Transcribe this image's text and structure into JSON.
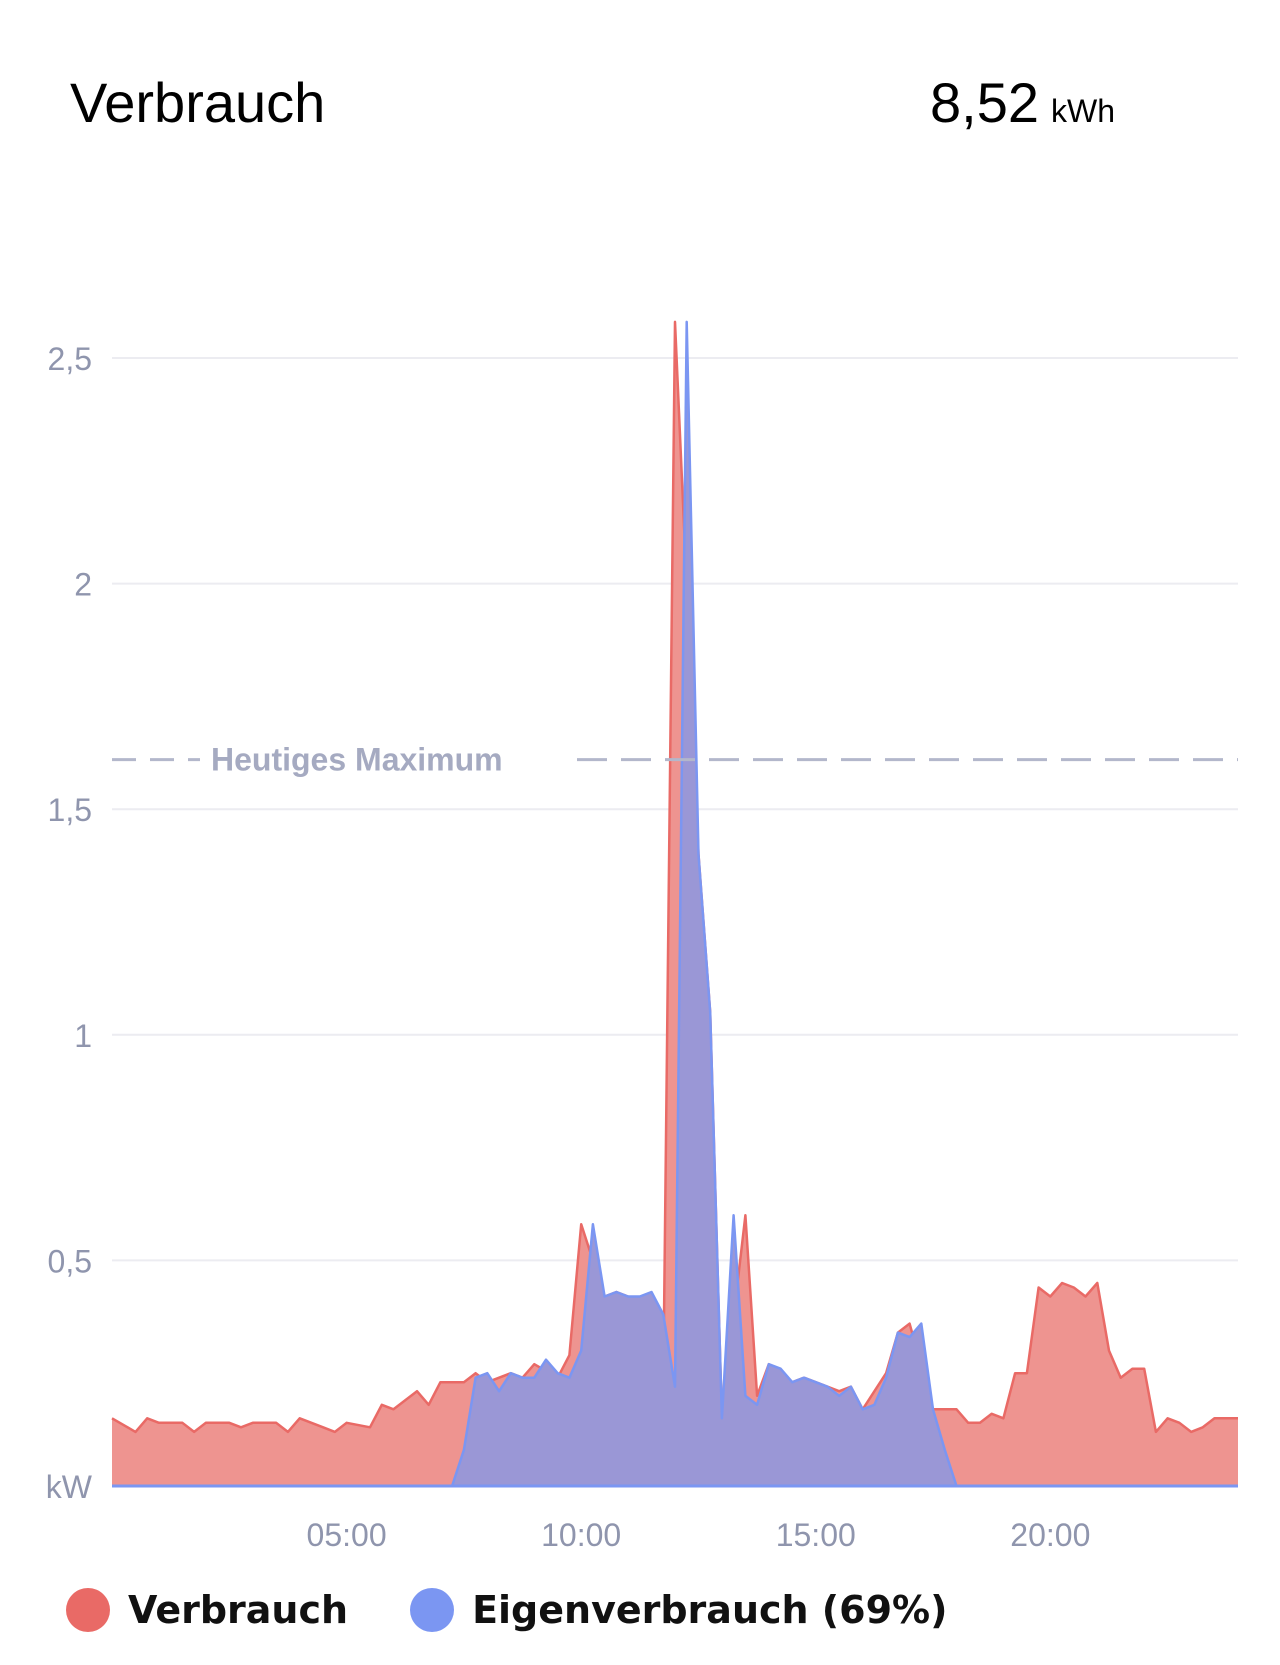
{
  "header": {
    "title": "Verbrauch",
    "total_value": "8,52",
    "total_unit": "kWh"
  },
  "chart_data": {
    "type": "area",
    "x_unit": "hours",
    "xlim": [
      0,
      24
    ],
    "ylim": [
      0,
      2.5
    ],
    "ylabel": "kW",
    "y_ticks": [
      0.5,
      1,
      1.5,
      2,
      2.5
    ],
    "y_tick_labels": [
      "0,5",
      "1",
      "1,5",
      "2",
      "2,5"
    ],
    "x_ticks": [
      5,
      10,
      15,
      20
    ],
    "x_tick_labels": [
      "05:00",
      "10:00",
      "15:00",
      "20:00"
    ],
    "grid": true,
    "legend_position": "bottom-left",
    "reference_line": {
      "label": "Heutiges Maximum",
      "value": 1.61,
      "style": "dashed"
    },
    "series": [
      {
        "name": "Verbrauch",
        "color": "#e96a66",
        "fill": "#ee9490",
        "x": [
          0,
          0.5,
          0.75,
          1,
          1.5,
          1.75,
          2,
          2.5,
          2.75,
          3,
          3.5,
          3.75,
          4,
          4.5,
          4.75,
          5,
          5.5,
          5.75,
          6,
          6.5,
          6.75,
          7,
          7.5,
          7.75,
          8,
          8.5,
          8.75,
          9,
          9.5,
          9.75,
          10,
          10.5,
          10.75,
          11,
          11.5,
          11.75,
          12,
          12.5,
          12.75,
          13,
          13.5,
          13.75,
          14,
          14.5,
          14.75,
          15,
          15.5,
          15.75,
          16,
          16.5,
          16.75,
          17,
          17.5,
          17.75,
          18,
          18.25,
          18.5,
          18.75,
          19,
          19.25,
          19.5,
          19.75,
          20,
          20.25,
          20.5,
          20.75,
          21,
          21.25,
          21.5,
          21.75,
          22,
          22.25,
          22.5,
          22.75,
          23,
          23.25,
          23.5,
          24
        ],
        "values": [
          0.15,
          0.12,
          0.15,
          0.14,
          0.14,
          0.12,
          0.14,
          0.14,
          0.13,
          0.14,
          0.14,
          0.12,
          0.15,
          0.13,
          0.12,
          0.14,
          0.13,
          0.18,
          0.17,
          0.21,
          0.18,
          0.23,
          0.23,
          0.25,
          0.23,
          0.25,
          0.24,
          0.27,
          0.24,
          0.29,
          0.58,
          0.42,
          0.43,
          0.42,
          0.38,
          0.23,
          2.58,
          1.4,
          1.05,
          0.15,
          0.6,
          0.2,
          0.27,
          0.23,
          0.24,
          0.23,
          0.21,
          0.22,
          0.17,
          0.25,
          0.34,
          0.36,
          0.17,
          0.17,
          0.17,
          0.14,
          0.14,
          0.16,
          0.15,
          0.25,
          0.25,
          0.44,
          0.42,
          0.45,
          0.44,
          0.42,
          0.45,
          0.3,
          0.24,
          0.26,
          0.26,
          0.12,
          0.15,
          0.14,
          0.12,
          0.13,
          0.15,
          0.15
        ]
      },
      {
        "name": "Eigenverbrauch (69%)",
        "color": "#7b96f2",
        "fill": "#9a97d6",
        "x": [
          0,
          7.25,
          7.5,
          7.75,
          8,
          8.25,
          8.5,
          8.75,
          9,
          9.25,
          9.5,
          9.75,
          10,
          10.25,
          10.5,
          10.75,
          11,
          11.25,
          11.5,
          11.75,
          12,
          12.25,
          12.5,
          12.75,
          13,
          13.25,
          13.5,
          13.75,
          14,
          14.25,
          14.5,
          14.75,
          15,
          15.25,
          15.5,
          15.75,
          16,
          16.25,
          16.5,
          16.75,
          17,
          17.25,
          17.5,
          17.75,
          18,
          18.25,
          18.5,
          24
        ],
        "values": [
          0,
          0,
          0.08,
          0.24,
          0.25,
          0.21,
          0.25,
          0.24,
          0.24,
          0.28,
          0.25,
          0.24,
          0.3,
          0.58,
          0.42,
          0.43,
          0.42,
          0.42,
          0.43,
          0.38,
          0.22,
          2.58,
          1.4,
          1.05,
          0.15,
          0.6,
          0.2,
          0.18,
          0.27,
          0.26,
          0.23,
          0.24,
          0.23,
          0.22,
          0.2,
          0.22,
          0.17,
          0.18,
          0.24,
          0.34,
          0.33,
          0.36,
          0.17,
          0.08,
          0,
          0,
          0,
          0
        ]
      }
    ]
  },
  "legend": {
    "items": [
      {
        "label": "Verbrauch",
        "color": "#e96a66"
      },
      {
        "label": "Eigenverbrauch (69%)",
        "color": "#7b96f2"
      }
    ]
  }
}
